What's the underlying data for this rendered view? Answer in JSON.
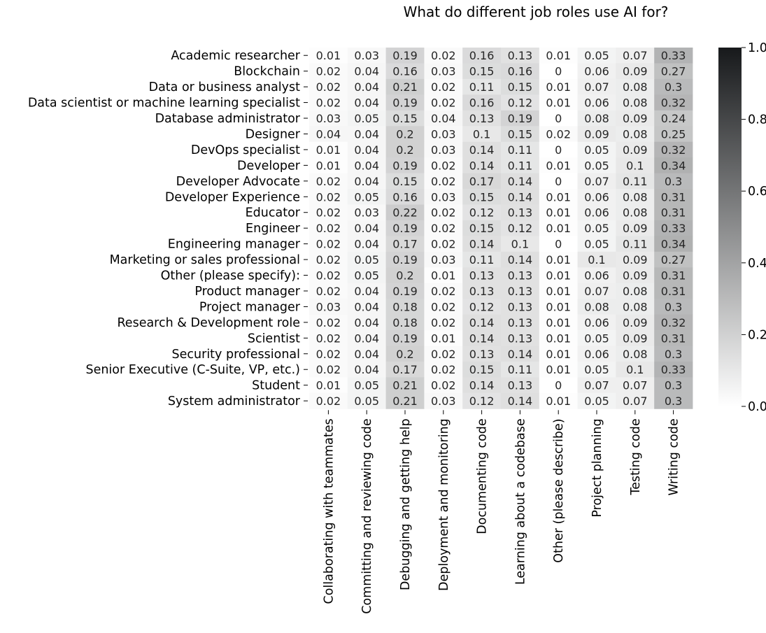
{
  "chart_data": {
    "type": "heatmap",
    "title": "What do different job roles use AI for?",
    "xlabel": "",
    "ylabel": "",
    "rows": [
      "Academic researcher",
      "Blockchain",
      "Data or business analyst",
      "Data scientist or machine learning specialist",
      "Database administrator",
      "Designer",
      "DevOps specialist",
      "Developer",
      "Developer Advocate",
      "Developer Experience",
      "Educator",
      "Engineer",
      "Engineering manager",
      "Marketing or sales professional",
      "Other (please specify):",
      "Product manager",
      "Project manager",
      "Research & Development role",
      "Scientist",
      "Security professional",
      "Senior Executive (C-Suite, VP, etc.)",
      "Student",
      "System administrator"
    ],
    "columns": [
      "Collaborating with teammates",
      "Committing and reviewing code",
      "Debugging and getting help",
      "Deployment and monitoring",
      "Documenting code",
      "Learning about a codebase",
      "Other (please describe)",
      "Project planning",
      "Testing code",
      "Writing code"
    ],
    "values": [
      [
        0.01,
        0.03,
        0.19,
        0.02,
        0.16,
        0.13,
        0.01,
        0.05,
        0.07,
        0.33
      ],
      [
        0.02,
        0.04,
        0.16,
        0.03,
        0.15,
        0.16,
        0,
        0.06,
        0.09,
        0.27
      ],
      [
        0.02,
        0.04,
        0.21,
        0.02,
        0.11,
        0.15,
        0.01,
        0.07,
        0.08,
        0.3
      ],
      [
        0.02,
        0.04,
        0.19,
        0.02,
        0.16,
        0.12,
        0.01,
        0.06,
        0.08,
        0.32
      ],
      [
        0.03,
        0.05,
        0.15,
        0.04,
        0.13,
        0.19,
        0,
        0.08,
        0.09,
        0.24
      ],
      [
        0.04,
        0.04,
        0.2,
        0.03,
        0.1,
        0.15,
        0.02,
        0.09,
        0.08,
        0.25
      ],
      [
        0.01,
        0.04,
        0.2,
        0.03,
        0.14,
        0.11,
        0,
        0.05,
        0.09,
        0.32
      ],
      [
        0.01,
        0.04,
        0.19,
        0.02,
        0.14,
        0.11,
        0.01,
        0.05,
        0.1,
        0.34
      ],
      [
        0.02,
        0.04,
        0.15,
        0.02,
        0.17,
        0.14,
        0,
        0.07,
        0.11,
        0.3
      ],
      [
        0.02,
        0.05,
        0.16,
        0.03,
        0.15,
        0.14,
        0.01,
        0.06,
        0.08,
        0.31
      ],
      [
        0.02,
        0.03,
        0.22,
        0.02,
        0.12,
        0.13,
        0.01,
        0.06,
        0.08,
        0.31
      ],
      [
        0.02,
        0.04,
        0.19,
        0.02,
        0.15,
        0.12,
        0.01,
        0.05,
        0.09,
        0.33
      ],
      [
        0.02,
        0.04,
        0.17,
        0.02,
        0.14,
        0.1,
        0,
        0.05,
        0.11,
        0.34
      ],
      [
        0.02,
        0.05,
        0.19,
        0.03,
        0.11,
        0.14,
        0.01,
        0.1,
        0.09,
        0.27
      ],
      [
        0.02,
        0.05,
        0.2,
        0.01,
        0.13,
        0.13,
        0.01,
        0.06,
        0.09,
        0.31
      ],
      [
        0.02,
        0.04,
        0.19,
        0.02,
        0.13,
        0.13,
        0.01,
        0.07,
        0.08,
        0.31
      ],
      [
        0.03,
        0.04,
        0.18,
        0.02,
        0.12,
        0.13,
        0.01,
        0.08,
        0.08,
        0.3
      ],
      [
        0.02,
        0.04,
        0.18,
        0.02,
        0.14,
        0.13,
        0.01,
        0.06,
        0.09,
        0.32
      ],
      [
        0.02,
        0.04,
        0.19,
        0.01,
        0.14,
        0.13,
        0.01,
        0.05,
        0.09,
        0.31
      ],
      [
        0.02,
        0.04,
        0.2,
        0.02,
        0.13,
        0.14,
        0.01,
        0.06,
        0.08,
        0.3
      ],
      [
        0.02,
        0.04,
        0.17,
        0.02,
        0.15,
        0.11,
        0.01,
        0.05,
        0.1,
        0.33
      ],
      [
        0.01,
        0.05,
        0.21,
        0.02,
        0.14,
        0.13,
        0,
        0.07,
        0.07,
        0.3
      ],
      [
        0.02,
        0.05,
        0.21,
        0.03,
        0.12,
        0.14,
        0.01,
        0.05,
        0.07,
        0.3
      ]
    ],
    "colorbar": {
      "range": [
        0.0,
        1.0
      ],
      "ticks": [
        "0.0",
        "0.2",
        "0.4",
        "0.6",
        "0.8",
        "1.0"
      ],
      "colormap": "greys",
      "color_low": "#ffffff",
      "color_high": "#17191b"
    },
    "annotations": true,
    "grid": false
  }
}
